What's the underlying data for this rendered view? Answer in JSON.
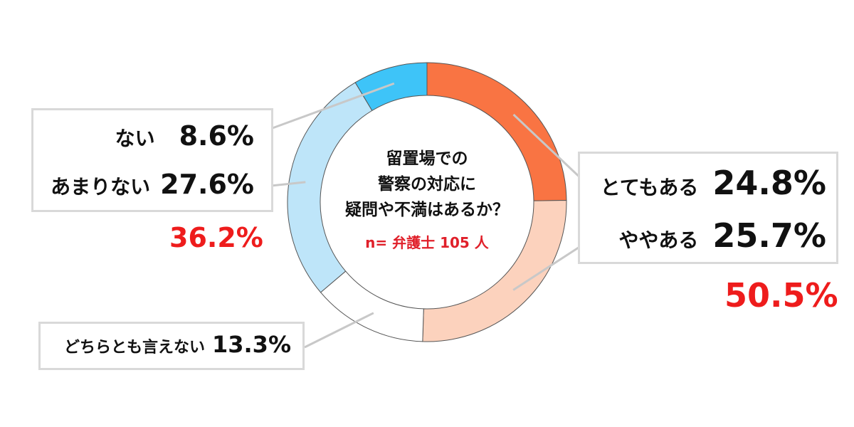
{
  "chart_data": {
    "type": "pie",
    "variant": "donut",
    "title": "留置場での 警察の対応に 疑問や不満はあるか？",
    "title_lines": [
      "留置場での",
      "警察の対応に",
      "疑問や不満はあるか？"
    ],
    "subtitle": "n= 弁護士 105 人",
    "slices": [
      {
        "label": "とてもある",
        "value": 24.8,
        "display": "24.8%",
        "color": "#F97443"
      },
      {
        "label": "ややある",
        "value": 25.7,
        "display": "25.7%",
        "color": "#FCD2BD"
      },
      {
        "label": "どちらとも言えない",
        "value": 13.3,
        "display": "13.3%",
        "color": "#FFFFFF"
      },
      {
        "label": "あまりない",
        "value": 27.6,
        "display": "27.6%",
        "color": "#BEE5F9"
      },
      {
        "label": "ない",
        "value": 8.6,
        "display": "8.6%",
        "color": "#3EC4F8"
      }
    ],
    "group_totals": {
      "positive": "50.5%",
      "negative": "36.2%"
    },
    "total_color": "#EE1C1C"
  }
}
